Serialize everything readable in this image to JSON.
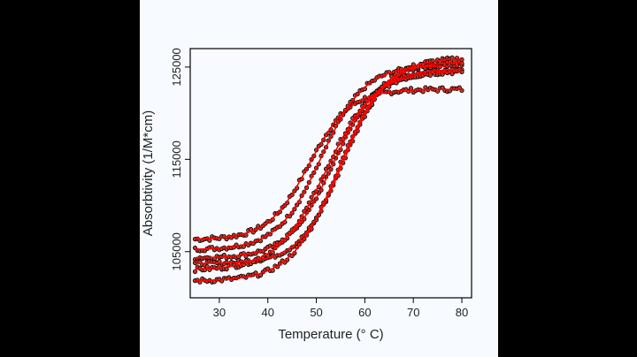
{
  "chart_data": {
    "type": "scatter",
    "title": "",
    "xlabel": "Temperature (° C)",
    "ylabel": "Absorbtivity (1/M*cm)",
    "xlim": [
      24,
      82
    ],
    "ylim": [
      100000,
      127000
    ],
    "xticks": [
      30,
      40,
      50,
      60,
      70,
      80
    ],
    "yticks": [
      105000,
      115000,
      125000
    ],
    "ytick_labels": [
      "105000",
      "115000",
      "125000"
    ],
    "grid": false,
    "legend": "none",
    "point_color": "#000000",
    "point_fill": "#c0392b",
    "fit_color": "#ff0000",
    "x_range": [
      25,
      80
    ],
    "series": [
      {
        "baseline": 106300,
        "plateau": 122600,
        "tm": 48.5,
        "width": 4.2,
        "noise": 250
      },
      {
        "baseline": 105200,
        "plateau": 125200,
        "tm": 51.0,
        "width": 4.5,
        "noise": 220
      },
      {
        "baseline": 104300,
        "plateau": 124800,
        "tm": 53.5,
        "width": 4.6,
        "noise": 220
      },
      {
        "baseline": 103700,
        "plateau": 125600,
        "tm": 55.5,
        "width": 4.4,
        "noise": 220
      },
      {
        "baseline": 103000,
        "plateau": 124600,
        "tm": 52.0,
        "width": 5.0,
        "noise": 260
      },
      {
        "baseline": 101800,
        "plateau": 126000,
        "tm": 54.5,
        "width": 4.8,
        "noise": 240
      }
    ]
  }
}
